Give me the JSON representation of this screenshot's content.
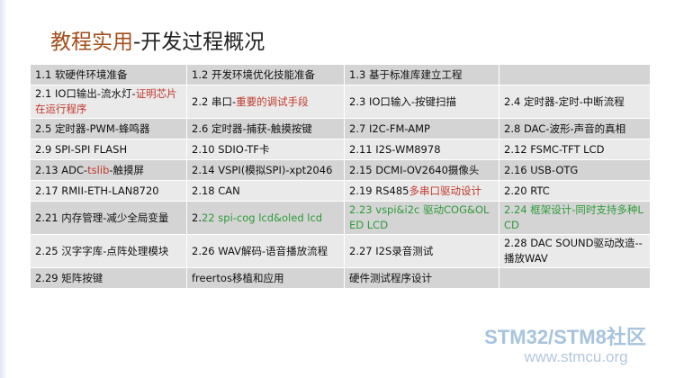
{
  "slide": {
    "title_main": "教程实用",
    "title_sub": "-开发过程概况"
  },
  "table": {
    "rows": [
      [
        "1.1 软硬件环境准备",
        "1.2 开发环境优化技能准备",
        "1.3 基于标准库建立工程",
        ""
      ],
      [
        "2.1 IO口输出-流水灯-",
        "2.2 串口-",
        "2.3 IO口输入-按键扫描",
        "2.4 定时器-定时-中断流程"
      ],
      [
        "2.5 定时器-PWM-蜂鸣器",
        "2.6 定时器-捕获-触摸按键",
        "2.7 I2C-FM-AMP",
        "2.8 DAC-波形-声音的真相"
      ],
      [
        "2.9 SPI-SPI FLASH",
        "2.10 SDIO-TF卡",
        "2.11 I2S-WM8978",
        "2.12 FSMC-TFT LCD"
      ],
      [
        "2.13 ADC-",
        "2.14 VSPI(模拟SPI)-xpt2046",
        "2.15 DCMI-OV2640摄像头",
        "2.16 USB-OTG"
      ],
      [
        "2.17 RMII-ETH-LAN8720",
        "2.18 CAN",
        "2.19 RS485",
        "2.20 RTC"
      ],
      [
        "2.21 内存管理-减少全局变量",
        "2.",
        "2.23 vspi&i2c 驱动COG&OLED LCD",
        "2.24 框架设计-同时支持多种LCD"
      ],
      [
        "2.25 汉字字库-点阵处理模块",
        "2.26 WAV解码-语音播放流程",
        "2.27 I2S录音测试",
        "2.28 DAC SOUND驱动改造--播放WAV"
      ],
      [
        "2.29 矩阵按键",
        "freertos移植和应用",
        "硬件测试程序设计",
        ""
      ]
    ],
    "highlights": {
      "r1c0": "证明芯片在运行程序",
      "r1c1": "重要的调试手段",
      "r4c0_red": "tslib",
      "r4c0_rest": "-触摸屏",
      "r5c2": "多串口驱动设计",
      "r6c1": "22 spi-cog lcd&oled lcd"
    },
    "colors": {
      "highlight_red": "#c0392b",
      "highlight_green": "#2e9b3a",
      "row_dark": "#d4d4d4",
      "row_light": "#eaeaea"
    }
  },
  "watermark": {
    "brand": "STM32/STM8社区",
    "url": "www.stmcu.org"
  }
}
